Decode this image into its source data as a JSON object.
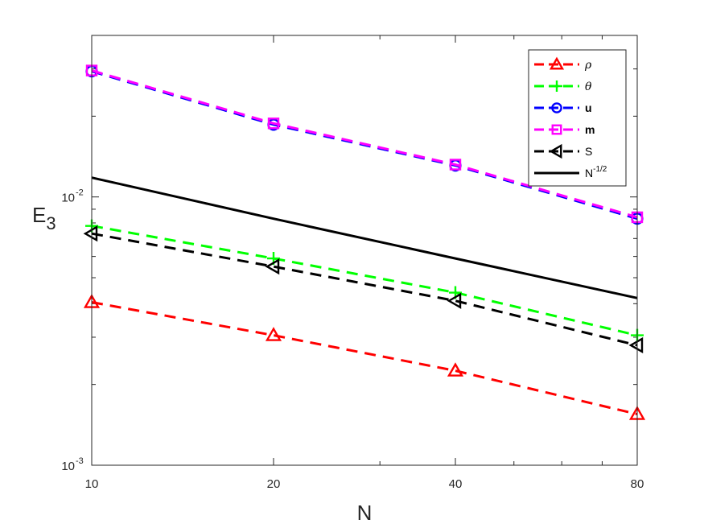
{
  "chart_data": {
    "type": "line",
    "xscale": "log",
    "yscale": "log",
    "xlabel": "N",
    "ylabel_main": "E",
    "ylabel_sub": "3",
    "xlim": [
      10,
      80
    ],
    "ylim": [
      0.001,
      0.04
    ],
    "xticks": [
      {
        "value": 10,
        "label": "10"
      },
      {
        "value": 20,
        "label": "20"
      },
      {
        "value": 40,
        "label": "40"
      },
      {
        "value": 80,
        "label": "80"
      }
    ],
    "yticks": [
      {
        "value": 0.001,
        "base": "10",
        "exp": "-3"
      },
      {
        "value": 0.01,
        "base": "10",
        "exp": "-2"
      }
    ],
    "legend_position": "top-right",
    "series": [
      {
        "key": "rho",
        "name": "ρ",
        "font": "greek",
        "color": "#ff0000",
        "dash": true,
        "marker": "triangle-up",
        "x": [
          10,
          20,
          40,
          80
        ],
        "y": [
          0.00405,
          0.00305,
          0.00225,
          0.00155
        ]
      },
      {
        "key": "theta",
        "name": "θ",
        "font": "greek",
        "color": "#00ff00",
        "dash": true,
        "marker": "plus",
        "x": [
          10,
          20,
          40,
          80
        ],
        "y": [
          0.0078,
          0.0059,
          0.0044,
          0.00305
        ]
      },
      {
        "key": "u",
        "name": "u",
        "font": "bold",
        "color": "#0000ff",
        "dash": true,
        "marker": "circle",
        "x": [
          10,
          20,
          40,
          80
        ],
        "y": [
          0.0294,
          0.0186,
          0.0131,
          0.0083
        ]
      },
      {
        "key": "m",
        "name": "m",
        "font": "bold",
        "color": "#ff00ff",
        "dash": true,
        "marker": "square",
        "x": [
          10,
          20,
          40,
          80
        ],
        "y": [
          0.0296,
          0.0188,
          0.0132,
          0.0084
        ]
      },
      {
        "key": "S",
        "name": "S",
        "font": "normal",
        "color": "#000000",
        "dash": true,
        "marker": "triangle-left",
        "x": [
          10,
          20,
          40,
          80
        ],
        "y": [
          0.0073,
          0.0055,
          0.0041,
          0.0028
        ]
      },
      {
        "key": "ref",
        "name": "N",
        "name_sup": "-1/2",
        "font": "normal",
        "color": "#000000",
        "dash": false,
        "marker": "none",
        "x": [
          10,
          20,
          40,
          80
        ],
        "y": [
          0.0118,
          0.0083,
          0.0059,
          0.0042
        ]
      }
    ]
  }
}
